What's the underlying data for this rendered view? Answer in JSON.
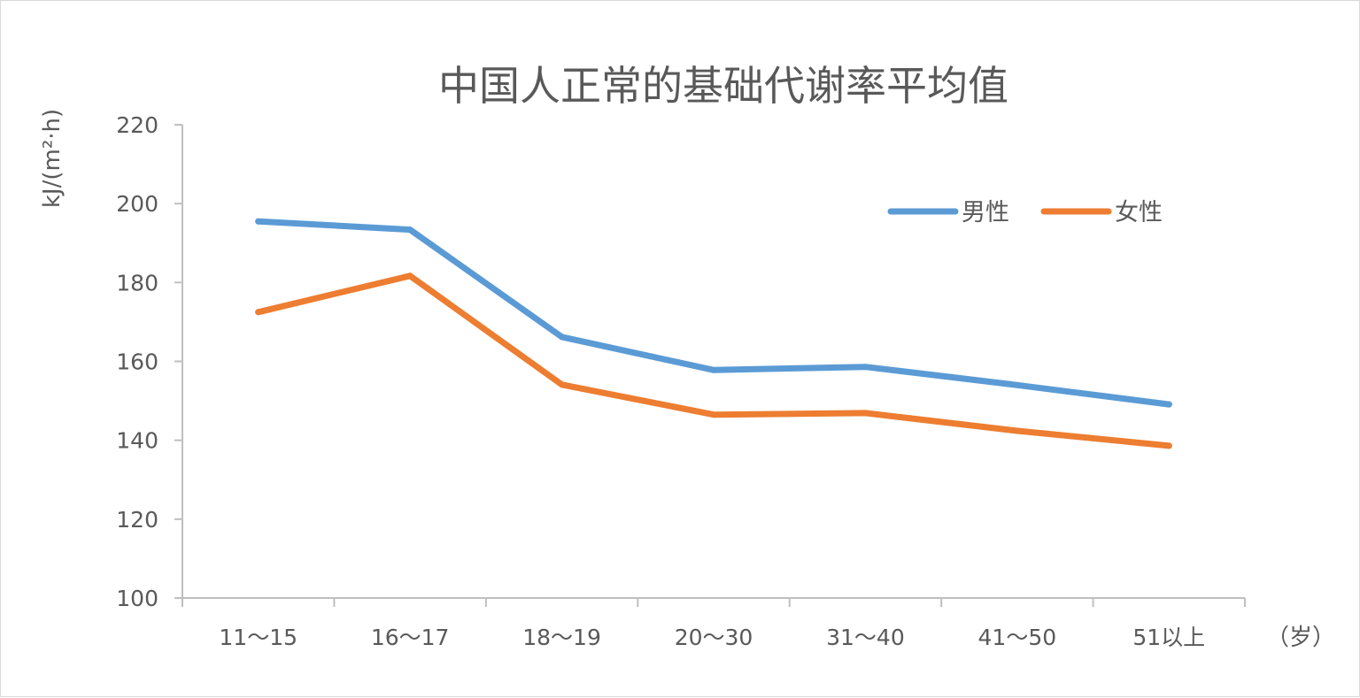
{
  "chart_data": {
    "type": "line",
    "title": "中国人正常的基础代谢率平均值",
    "ylabel": "kJ/(m²·h)",
    "x_unit": "（岁）",
    "categories": [
      "11～15",
      "16～17",
      "18～19",
      "20～30",
      "31～40",
      "41～50",
      "51以上"
    ],
    "ylim": [
      100,
      220
    ],
    "yticks": [
      100,
      120,
      140,
      160,
      180,
      200,
      220
    ],
    "grid": false,
    "legend_position": "top-right",
    "series": [
      {
        "name": "男性",
        "color": "#5b9bd5",
        "values": [
          195.5,
          193.4,
          166.2,
          157.8,
          158.6,
          154.0,
          149.1
        ]
      },
      {
        "name": "女性",
        "color": "#ed7d31",
        "values": [
          172.5,
          181.7,
          154.1,
          146.5,
          146.9,
          142.4,
          138.6
        ]
      }
    ]
  }
}
